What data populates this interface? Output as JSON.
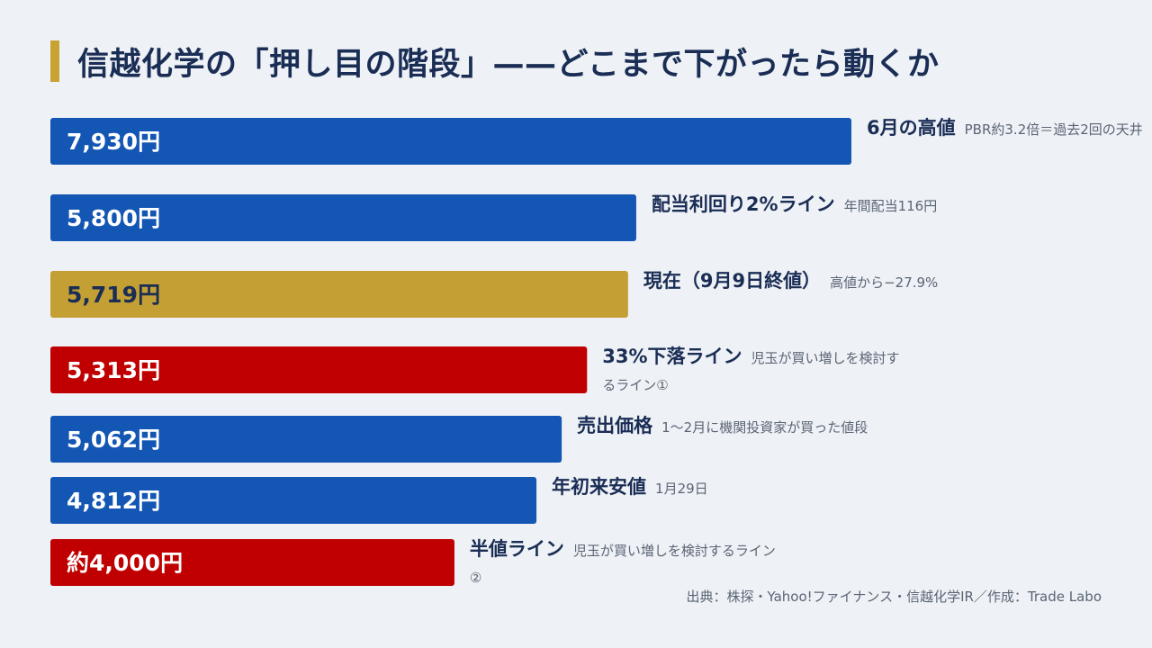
{
  "title": "信越化学の「押し目の階段」——どこまで下がったら動くか",
  "source": "出典：株探・Yahoo!ファイナンス・信越化学IR／作成：Trade Labo",
  "colors": {
    "blue": "#1456b4",
    "gold": "#c39f34",
    "red": "#c00000",
    "title_accent": "#c9a332",
    "title_text": "#1a2d55"
  },
  "chart_data": {
    "type": "bar",
    "orientation": "horizontal",
    "title": "信越化学の「押し目の階段」——どこまで下がったら動くか",
    "xlabel": "",
    "ylabel": "",
    "unit": "円",
    "xlim": [
      0,
      7930
    ],
    "grid": false,
    "legend": "none",
    "bars": [
      {
        "value": 7930,
        "value_label": "7,930円",
        "name": "6月の高値",
        "note": "PBR約3.2倍＝過去2回の天井",
        "color": "blue",
        "label_color": "#ffffff"
      },
      {
        "value": 5800,
        "value_label": "5,800円",
        "name": "配当利回り2%ライン",
        "note": "年間配当116円",
        "color": "blue",
        "label_color": "#ffffff"
      },
      {
        "value": 5719,
        "value_label": "5,719円",
        "name": "現在（9月9日終値）",
        "note": "高値から−27.9%",
        "color": "gold",
        "label_color": "#1a2d55"
      },
      {
        "value": 5313,
        "value_label": "5,313円",
        "name": "33%下落ライン",
        "note": "児玉が買い増しを検討するライン①",
        "color": "red",
        "label_color": "#ffffff"
      },
      {
        "value": 5062,
        "value_label": "5,062円",
        "name": "売出価格",
        "note": "1〜2月に機関投資家が買った値段",
        "color": "blue",
        "label_color": "#ffffff"
      },
      {
        "value": 4812,
        "value_label": "4,812円",
        "name": "年初来安値",
        "note": "1月29日",
        "color": "blue",
        "label_color": "#ffffff"
      },
      {
        "value": 4000,
        "value_label": "約4,000円",
        "name": "半値ライン",
        "note": "児玉が買い増しを検討するライン②",
        "color": "red",
        "label_color": "#ffffff"
      }
    ]
  }
}
